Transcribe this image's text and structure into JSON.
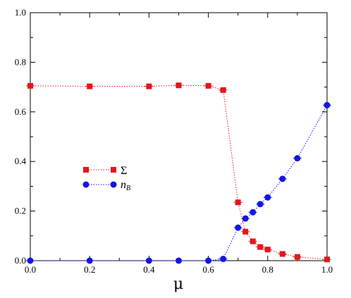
{
  "chart_data": {
    "type": "line",
    "title": "",
    "xlabel": "μ",
    "ylabel": "",
    "xlim": [
      0.0,
      1.0
    ],
    "ylim": [
      0.0,
      1.0
    ],
    "x_ticks": [
      "0.0",
      "0.2",
      "0.4",
      "0.6",
      "0.8",
      "1.0"
    ],
    "y_ticks": [
      "0.0",
      "0.2",
      "0.4",
      "0.6",
      "0.8",
      "1.0"
    ],
    "grid": false,
    "legend_position": "middle-left",
    "series": [
      {
        "name": "Σ",
        "name_parts": [
          "Σ"
        ],
        "color": "#e8141c",
        "marker": "square",
        "line_style": "dotted",
        "x": [
          0.0,
          0.2,
          0.4,
          0.5,
          0.6,
          0.65,
          0.7,
          0.725,
          0.75,
          0.775,
          0.8,
          0.85,
          0.9,
          1.0
        ],
        "y": [
          0.705,
          0.703,
          0.703,
          0.707,
          0.705,
          0.688,
          0.235,
          0.117,
          0.078,
          0.055,
          0.045,
          0.027,
          0.015,
          0.005
        ]
      },
      {
        "name": "nB",
        "name_parts": [
          "n",
          "B"
        ],
        "color": "#1414e8",
        "marker": "circle",
        "line_style": "dotted",
        "x": [
          0.0,
          0.2,
          0.4,
          0.5,
          0.6,
          0.65,
          0.7,
          0.725,
          0.75,
          0.775,
          0.8,
          0.85,
          0.9,
          1.0
        ],
        "y": [
          0.0,
          0.0,
          0.0,
          0.0,
          0.0,
          0.007,
          0.133,
          0.17,
          0.195,
          0.228,
          0.255,
          0.33,
          0.413,
          0.627
        ]
      }
    ]
  }
}
